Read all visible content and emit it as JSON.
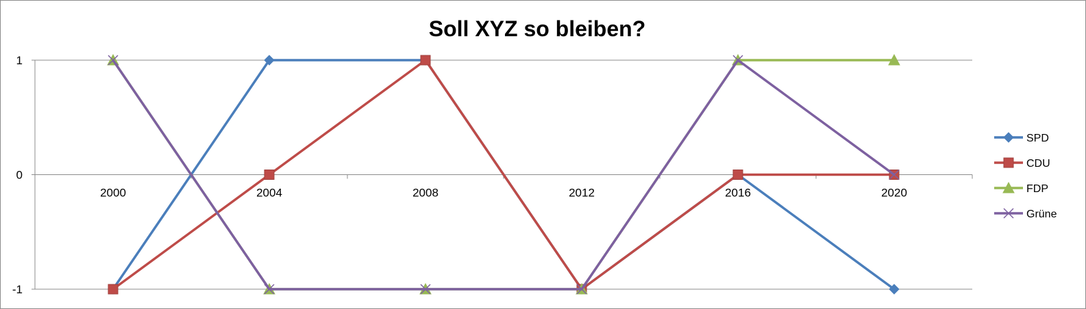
{
  "chart_data": {
    "type": "line",
    "title": "Soll XYZ so bleiben?",
    "xlabel": "",
    "ylabel": "",
    "categories": [
      "2000",
      "2004",
      "2008",
      "2012",
      "2016",
      "2020"
    ],
    "y_ticks": [
      "-1",
      "0",
      "1"
    ],
    "ylim": [
      -1,
      1
    ],
    "grid": true,
    "legend": "right",
    "series": [
      {
        "name": "SPD",
        "values": [
          -1,
          1,
          1,
          -1,
          0,
          -1
        ],
        "color": "#4a7ebb",
        "marker": "diamond"
      },
      {
        "name": "CDU",
        "values": [
          -1,
          0,
          1,
          -1,
          0,
          0
        ],
        "color": "#be4b48",
        "marker": "square"
      },
      {
        "name": "FDP",
        "values": [
          1,
          -1,
          -1,
          -1,
          1,
          1
        ],
        "color": "#98b954",
        "marker": "triangle"
      },
      {
        "name": "Grüne",
        "values": [
          1,
          -1,
          -1,
          -1,
          1,
          0
        ],
        "color": "#7d60a0",
        "marker": "x"
      }
    ]
  }
}
